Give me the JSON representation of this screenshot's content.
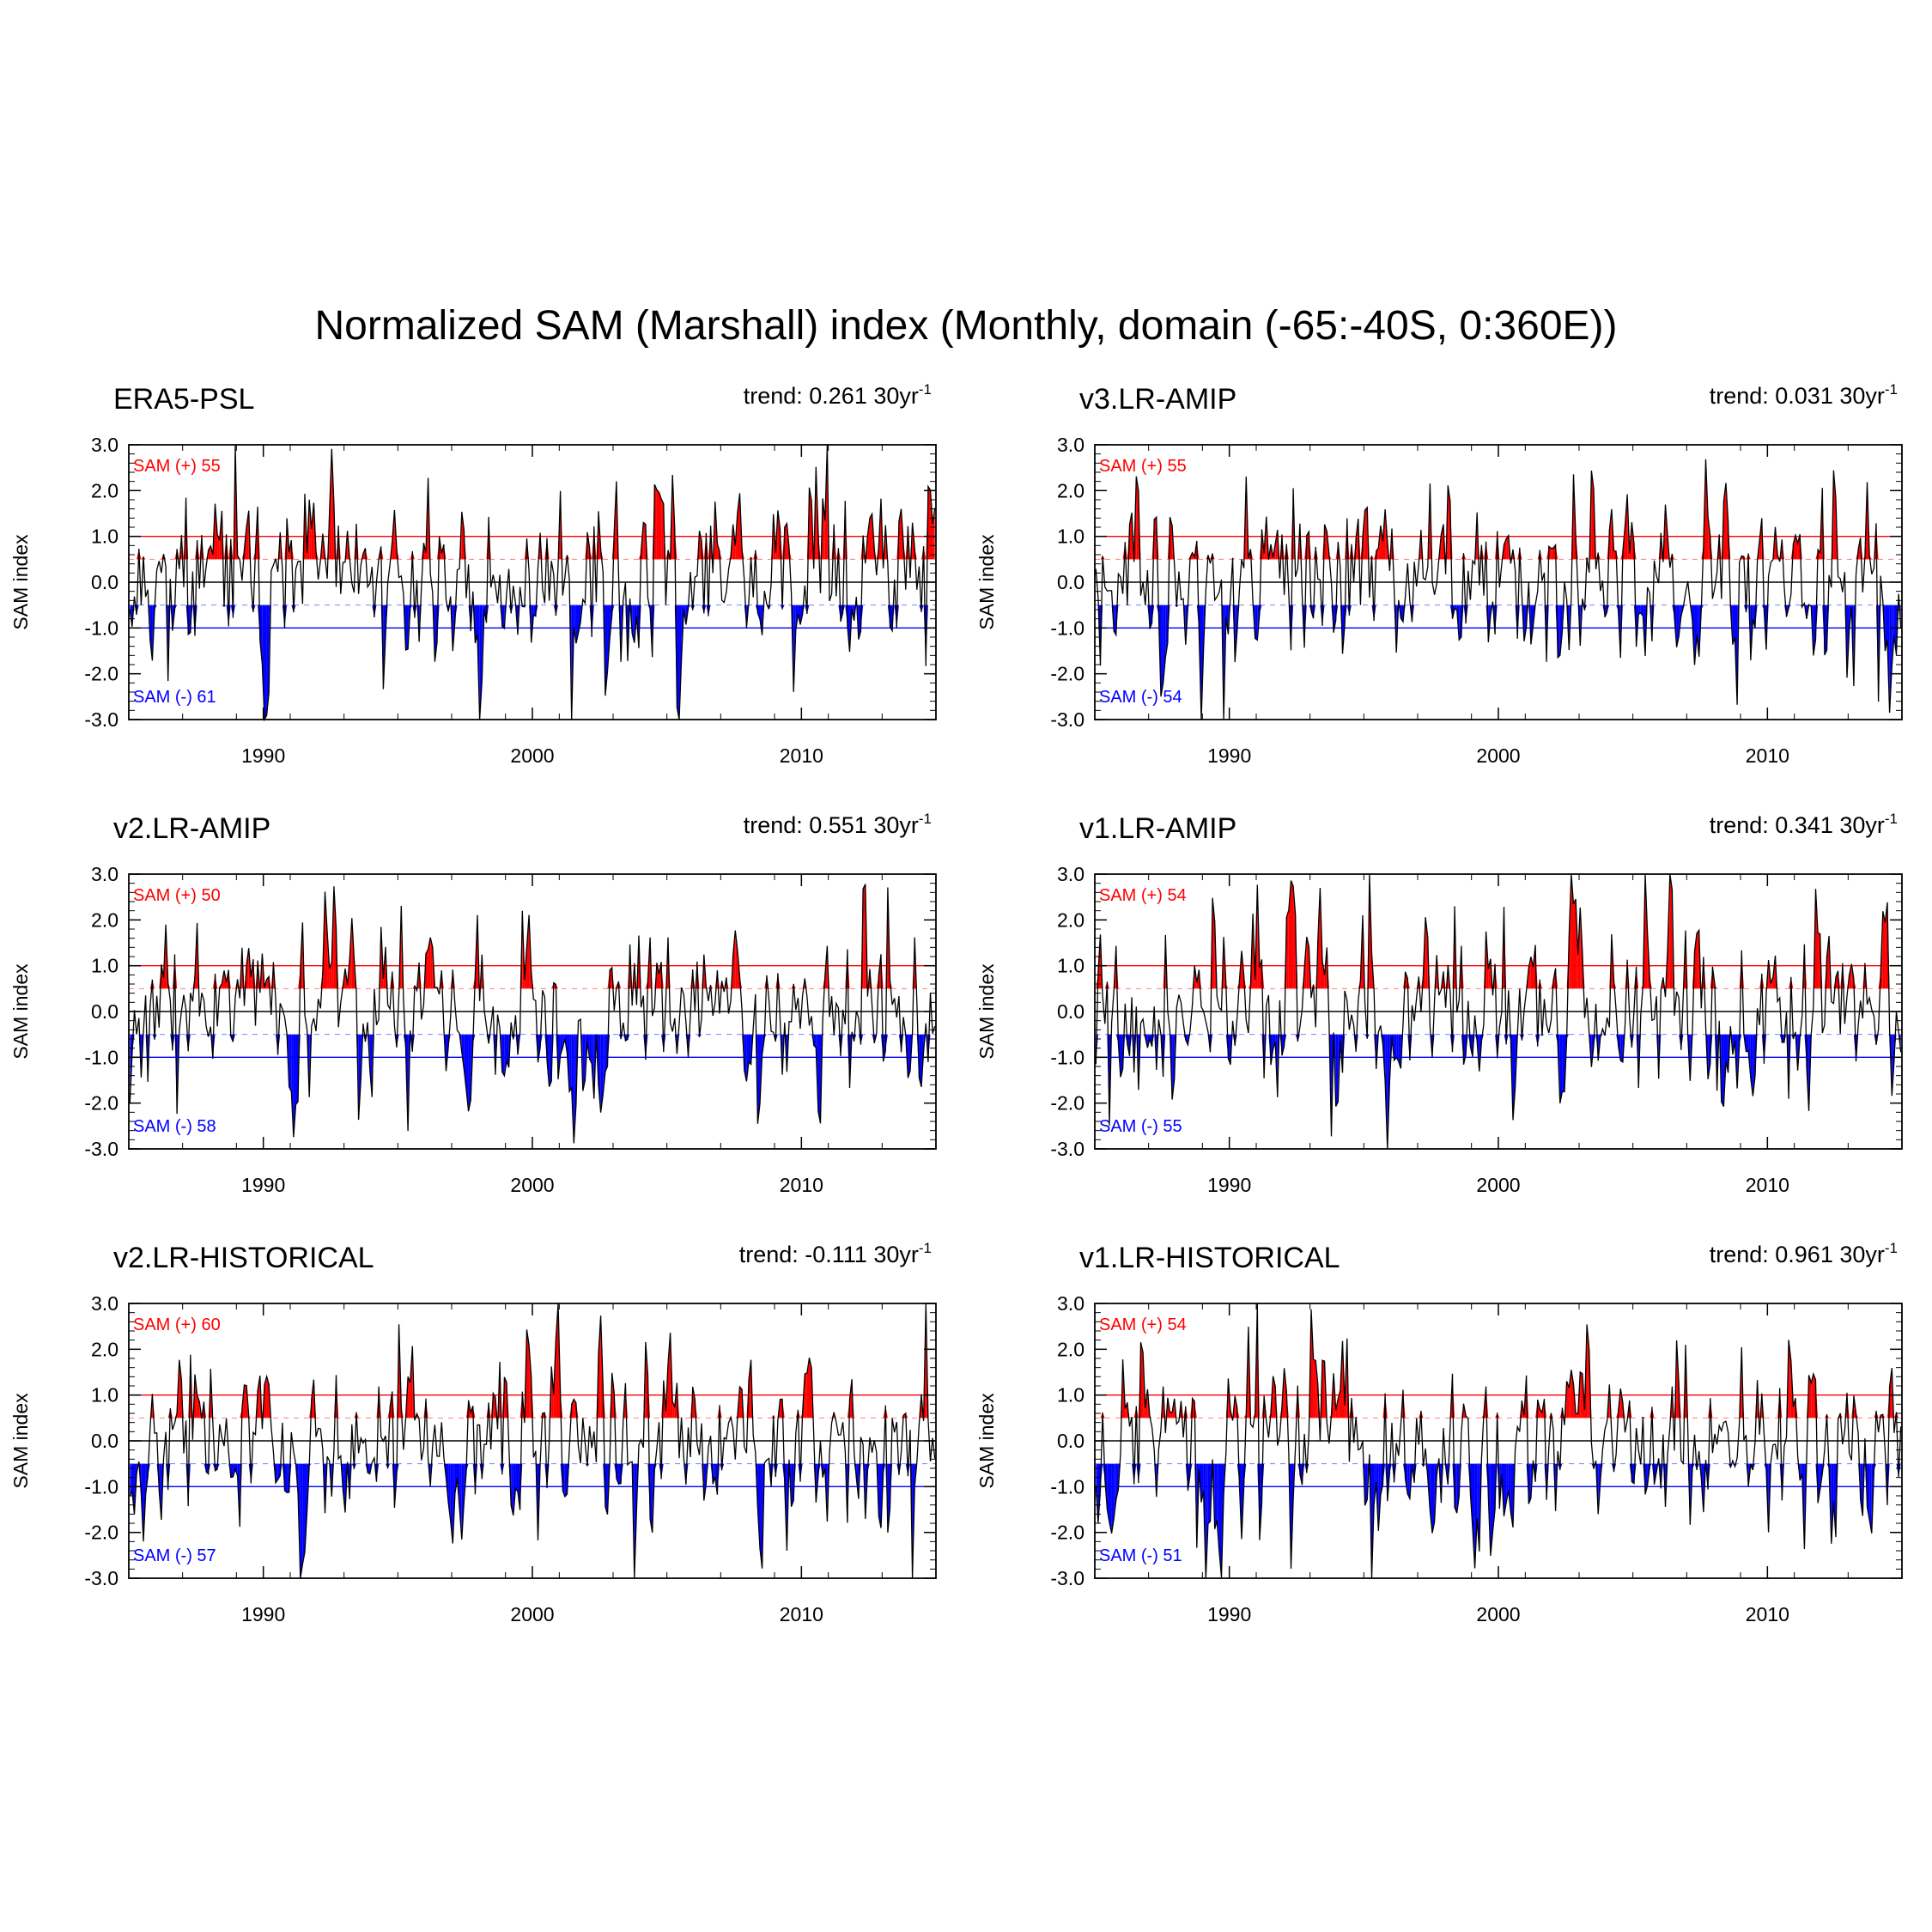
{
  "figure": {
    "title": "Normalized SAM (Marshall) index (Monthly, domain (-65:-40S, 0:360E))"
  },
  "colors": {
    "positive_fill": "#ff0000",
    "negative_fill": "#0000ff",
    "positive_line": "#ff0000",
    "negative_line": "#0000ff",
    "series_line": "#000000"
  },
  "chart_data": [
    {
      "type": "area",
      "title": "ERA5-PSL",
      "trend_prefix": "trend: ",
      "trend_value": "0.261",
      "trend_unit": "30yr",
      "trend_exp": "-1",
      "ylabel": "SAM index",
      "ylim": [
        -3.0,
        3.0
      ],
      "xlim": [
        1985,
        2015
      ],
      "yticks": [
        "3.0",
        "2.0",
        "1.0",
        "0.0",
        "-1.0",
        "-2.0",
        "-3.0"
      ],
      "xticks": [
        "1990",
        "2000",
        "2010"
      ],
      "threshold_pos": 1.0,
      "threshold_neg": -1.0,
      "fill_pos_above": 0.5,
      "fill_neg_below": -0.5,
      "pos_label": "SAM (+) 55",
      "neg_label": "SAM (-) 61",
      "seed": 11
    },
    {
      "type": "area",
      "title": "v3.LR-AMIP",
      "trend_prefix": "trend: ",
      "trend_value": "0.031",
      "trend_unit": "30yr",
      "trend_exp": "-1",
      "ylabel": "SAM index",
      "ylim": [
        -3.0,
        3.0
      ],
      "xlim": [
        1985,
        2015
      ],
      "yticks": [
        "3.0",
        "2.0",
        "1.0",
        "0.0",
        "-1.0",
        "-2.0",
        "-3.0"
      ],
      "xticks": [
        "1990",
        "2000",
        "2010"
      ],
      "threshold_pos": 1.0,
      "threshold_neg": -1.0,
      "fill_pos_above": 0.5,
      "fill_neg_below": -0.5,
      "pos_label": "SAM (+) 55",
      "neg_label": "SAM (-) 54",
      "seed": 23
    },
    {
      "type": "area",
      "title": "v2.LR-AMIP",
      "trend_prefix": "trend: ",
      "trend_value": "0.551",
      "trend_unit": "30yr",
      "trend_exp": "-1",
      "ylabel": "SAM index",
      "ylim": [
        -3.0,
        3.0
      ],
      "xlim": [
        1985,
        2015
      ],
      "yticks": [
        "3.0",
        "2.0",
        "1.0",
        "0.0",
        "-1.0",
        "-2.0",
        "-3.0"
      ],
      "xticks": [
        "1990",
        "2000",
        "2010"
      ],
      "threshold_pos": 1.0,
      "threshold_neg": -1.0,
      "fill_pos_above": 0.5,
      "fill_neg_below": -0.5,
      "pos_label": "SAM (+) 50",
      "neg_label": "SAM (-) 58",
      "seed": 37
    },
    {
      "type": "area",
      "title": "v1.LR-AMIP",
      "trend_prefix": "trend: ",
      "trend_value": "0.341",
      "trend_unit": "30yr",
      "trend_exp": "-1",
      "ylabel": "SAM index",
      "ylim": [
        -3.0,
        3.0
      ],
      "xlim": [
        1985,
        2015
      ],
      "yticks": [
        "3.0",
        "2.0",
        "1.0",
        "0.0",
        "-1.0",
        "-2.0",
        "-3.0"
      ],
      "xticks": [
        "1990",
        "2000",
        "2010"
      ],
      "threshold_pos": 1.0,
      "threshold_neg": -1.0,
      "fill_pos_above": 0.5,
      "fill_neg_below": -0.5,
      "pos_label": "SAM (+) 54",
      "neg_label": "SAM (-) 55",
      "seed": 41
    },
    {
      "type": "area",
      "title": "v2.LR-HISTORICAL",
      "trend_prefix": "trend: ",
      "trend_value": "-0.111",
      "trend_unit": "30yr",
      "trend_exp": "-1",
      "ylabel": "SAM index",
      "ylim": [
        -3.0,
        3.0
      ],
      "xlim": [
        1985,
        2015
      ],
      "yticks": [
        "3.0",
        "2.0",
        "1.0",
        "0.0",
        "-1.0",
        "-2.0",
        "-3.0"
      ],
      "xticks": [
        "1990",
        "2000",
        "2010"
      ],
      "threshold_pos": 1.0,
      "threshold_neg": -1.0,
      "fill_pos_above": 0.5,
      "fill_neg_below": -0.5,
      "pos_label": "SAM (+) 60",
      "neg_label": "SAM (-) 57",
      "seed": 53
    },
    {
      "type": "area",
      "title": "v1.LR-HISTORICAL",
      "trend_prefix": "trend: ",
      "trend_value": "0.961",
      "trend_unit": "30yr",
      "trend_exp": "-1",
      "ylabel": "SAM index",
      "ylim": [
        -3.0,
        3.0
      ],
      "xlim": [
        1985,
        2015
      ],
      "yticks": [
        "3.0",
        "2.0",
        "1.0",
        "0.0",
        "-1.0",
        "-2.0",
        "-3.0"
      ],
      "xticks": [
        "1990",
        "2000",
        "2010"
      ],
      "threshold_pos": 1.0,
      "threshold_neg": -1.0,
      "fill_pos_above": 0.5,
      "fill_neg_below": -0.5,
      "pos_label": "SAM (+) 54",
      "neg_label": "SAM (-) 51",
      "seed": 67
    }
  ]
}
